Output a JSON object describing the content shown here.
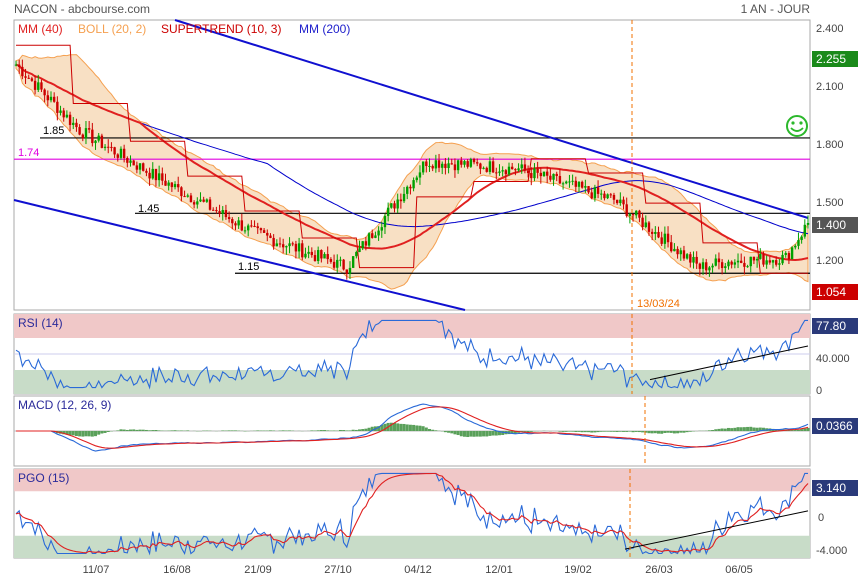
{
  "header": {
    "title": "NACON - abcbourse.com",
    "period": "1 AN - JOUR"
  },
  "colors": {
    "candle_up": "#00a000",
    "candle_down": "#cc0000",
    "mm40": "#e02020",
    "boll": "#f5a050",
    "boll_fill": "#f5d5b0",
    "supertrend": "#cc0000",
    "mm200": "#0000cc",
    "trendline": "#1010d0",
    "magenta": "#e000e0",
    "rsi": "#2a6ad8",
    "macd": "#2a6ad8",
    "macd_signal": "#e02020",
    "macd_hist": "#5aa05a",
    "zone_high": "#f0c8c8",
    "zone_low": "#c8dcc8",
    "last_price_bg": "#555555",
    "mm40_tag_bg": "#cc0000",
    "upper_tag_bg": "#1a8a1a",
    "vline": "#f07000"
  },
  "chart_data": [
    {
      "type": "candlestick",
      "legend": [
        {
          "label": "MM (40)",
          "color": "#e02020"
        },
        {
          "label": "BOLL (20, 2)",
          "color": "#f5a050"
        },
        {
          "label": "SUPERTREND (10, 3)",
          "color": "#cc0000"
        },
        {
          "label": "MM (200)",
          "color": "#2020cc"
        }
      ],
      "ylim": [
        0.95,
        2.45
      ],
      "y_ticks": [
        1.2,
        1.5,
        1.8,
        2.1,
        2.4
      ],
      "y_tick_labels": [
        "1.200",
        "1.500",
        "1.800",
        "2.100",
        "2.400"
      ],
      "x_labels": [
        "11/07",
        "16/08",
        "21/09",
        "27/10",
        "04/12",
        "12/01",
        "19/02",
        "26/03",
        "06/05"
      ],
      "horizontal_lines": [
        {
          "label": "1.85",
          "value": 1.84,
          "color": "#000000"
        },
        {
          "label": "1.74",
          "value": 1.73,
          "color": "#e000e0"
        },
        {
          "label": "1.45",
          "value": 1.45,
          "color": "#000000"
        },
        {
          "label": "1.15",
          "value": 1.14,
          "color": "#000000"
        }
      ],
      "annotation": "13/03/24",
      "price_tags": [
        {
          "label": "2.255",
          "value": 2.255,
          "bg": "#1a8a1a"
        },
        {
          "label": "1.400",
          "value": 1.4,
          "bg": "#555555"
        },
        {
          "label": "1.054",
          "value": 1.054,
          "bg": "#cc0000"
        }
      ],
      "key_points": [
        {
          "date": "start",
          "close": 2.22
        },
        {
          "date": "11/07",
          "close": 1.88
        },
        {
          "date": "16/08",
          "close": 1.63
        },
        {
          "date": "21/09",
          "close": 1.35
        },
        {
          "date": "27/10",
          "close": 1.17
        },
        {
          "date": "04/12",
          "close": 1.72
        },
        {
          "date": "12/01",
          "close": 1.68
        },
        {
          "date": "19/02",
          "close": 1.52
        },
        {
          "date": "13/03",
          "close": 1.17
        },
        {
          "date": "26/03",
          "close": 1.2
        },
        {
          "date": "06/05",
          "close": 1.22
        },
        {
          "date": "end",
          "close": 1.4
        }
      ]
    },
    {
      "type": "line",
      "title": "RSI (14)",
      "ylim": [
        0,
        100
      ],
      "y_ticks": [
        0,
        40
      ],
      "y_tick_labels": [
        "0",
        "40.000"
      ],
      "zones": {
        "high": 70,
        "low": 30
      },
      "last": "77.80"
    },
    {
      "type": "line",
      "title": "MACD (12, 26, 9)",
      "ylim": [
        -0.2,
        0.2
      ],
      "last": "0.0366"
    },
    {
      "type": "line",
      "title": "PGO (15)",
      "ylim": [
        -5,
        5
      ],
      "y_ticks": [
        0,
        -4
      ],
      "y_tick_labels": [
        "0",
        "-4.000"
      ],
      "zones": {
        "high": 2.5,
        "low": -2.5
      },
      "last": "3.140"
    }
  ]
}
